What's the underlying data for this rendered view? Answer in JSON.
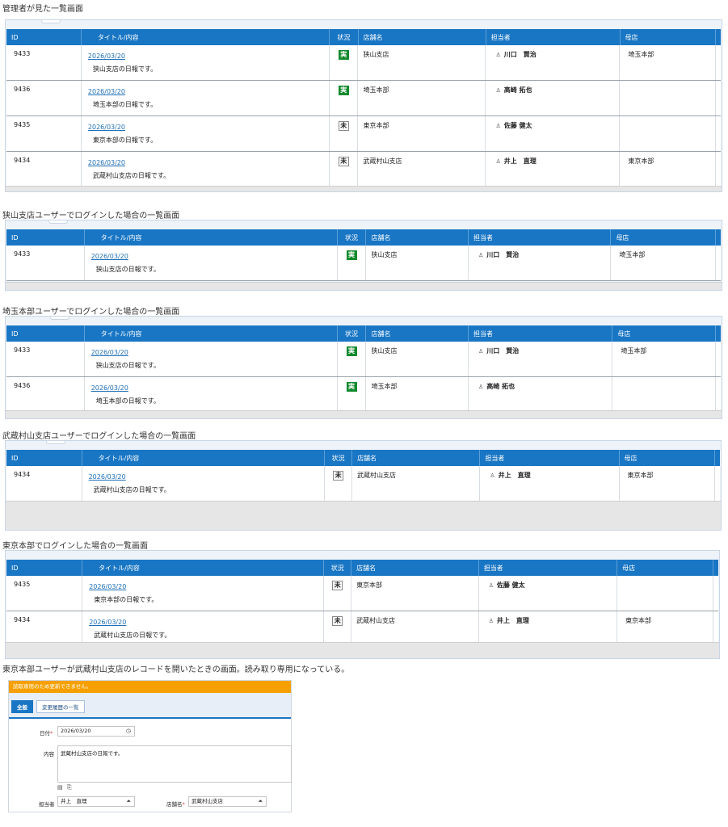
{
  "headers": {
    "id": "ID",
    "title": "タイトル/内容",
    "status": "状況",
    "store": "店舗名",
    "person": "担当者",
    "parent": "母店"
  },
  "sections": [
    {
      "caption": "管理者が見た一覧画面",
      "rows": [
        {
          "id": "9433",
          "date": "2026/03/20",
          "desc": "狭山支店の日報です。",
          "status": "実",
          "store": "狭山支店",
          "person": "川口　賢治",
          "parent": "埼玉本部"
        },
        {
          "id": "9436",
          "date": "2026/03/20",
          "desc": "埼玉本部の日報です。",
          "status": "実",
          "store": "埼玉本部",
          "person": "高崎 拓也",
          "parent": ""
        },
        {
          "id": "9435",
          "date": "2026/03/20",
          "desc": "東京本部の日報です。",
          "status": "未",
          "store": "東京本部",
          "person": "佐藤 健太",
          "parent": ""
        },
        {
          "id": "9434",
          "date": "2026/03/20",
          "desc": "武蔵村山支店の日報です。",
          "status": "未",
          "store": "武蔵村山支店",
          "person": "井上　直理",
          "parent": "東京本部"
        }
      ]
    },
    {
      "caption": "狭山支店ユーザーでログインした場合の一覧画面",
      "rows": [
        {
          "id": "9433",
          "date": "2026/03/20",
          "desc": "狭山支店の日報です。",
          "status": "実",
          "store": "狭山支店",
          "person": "川口　賢治",
          "parent": "埼玉本部"
        }
      ]
    },
    {
      "caption": "埼玉本部ユーザーでログインした場合の一覧画面",
      "rows": [
        {
          "id": "9433",
          "date": "2026/03/20",
          "desc": "狭山支店の日報です。",
          "status": "実",
          "store": "狭山支店",
          "person": "川口　賢治",
          "parent": "埼玉本部"
        },
        {
          "id": "9436",
          "date": "2026/03/20",
          "desc": "埼玉本部の日報です。",
          "status": "実",
          "store": "埼玉本部",
          "person": "高崎 拓也",
          "parent": ""
        }
      ]
    },
    {
      "caption": "武蔵村山支店ユーザーでログインした場合の一覧画面",
      "rows": [
        {
          "id": "9434",
          "date": "2026/03/20",
          "desc": "武蔵村山支店の日報です。",
          "status": "未",
          "store": "武蔵村山支店",
          "person": "井上　直理",
          "parent": "東京本部"
        }
      ]
    },
    {
      "caption": "東京本部でログインした場合の一覧画面",
      "rows": [
        {
          "id": "9435",
          "date": "2026/03/20",
          "desc": "東京本部の日報です。",
          "status": "未",
          "store": "東京本部",
          "person": "佐藤 健太",
          "parent": ""
        },
        {
          "id": "9434",
          "date": "2026/03/20",
          "desc": "武蔵村山支店の日報です。",
          "status": "未",
          "store": "武蔵村山支店",
          "person": "井上　直理",
          "parent": "東京本部"
        }
      ]
    }
  ],
  "form": {
    "caption": "東京本部ユーザーが武蔵村山支店のレコードを開いたときの画面。読み取り専用になっている。",
    "notice": "読取専用のため更新できません。",
    "tab_all": "全般",
    "tab_history": "変更履歴の一覧",
    "date_label": "日付",
    "date_value": "2026/03/20",
    "content_label": "内容",
    "content_value": "武蔵村山支店の日報です。",
    "person_label": "担当者",
    "person_value": "井上　直理",
    "store_label": "店舗名",
    "store_value": "武蔵村山支店",
    "required_mark": "*"
  },
  "colors": {
    "header_blue": "#1976c4",
    "done_green": "#138a2e",
    "notice_orange": "#f5a000",
    "link": "#1d6fb8"
  },
  "icons": {
    "person": "user-icon",
    "clock": "clock-icon",
    "lookup": "lookup-icon",
    "table": "table-icon",
    "attach": "attach-icon"
  }
}
